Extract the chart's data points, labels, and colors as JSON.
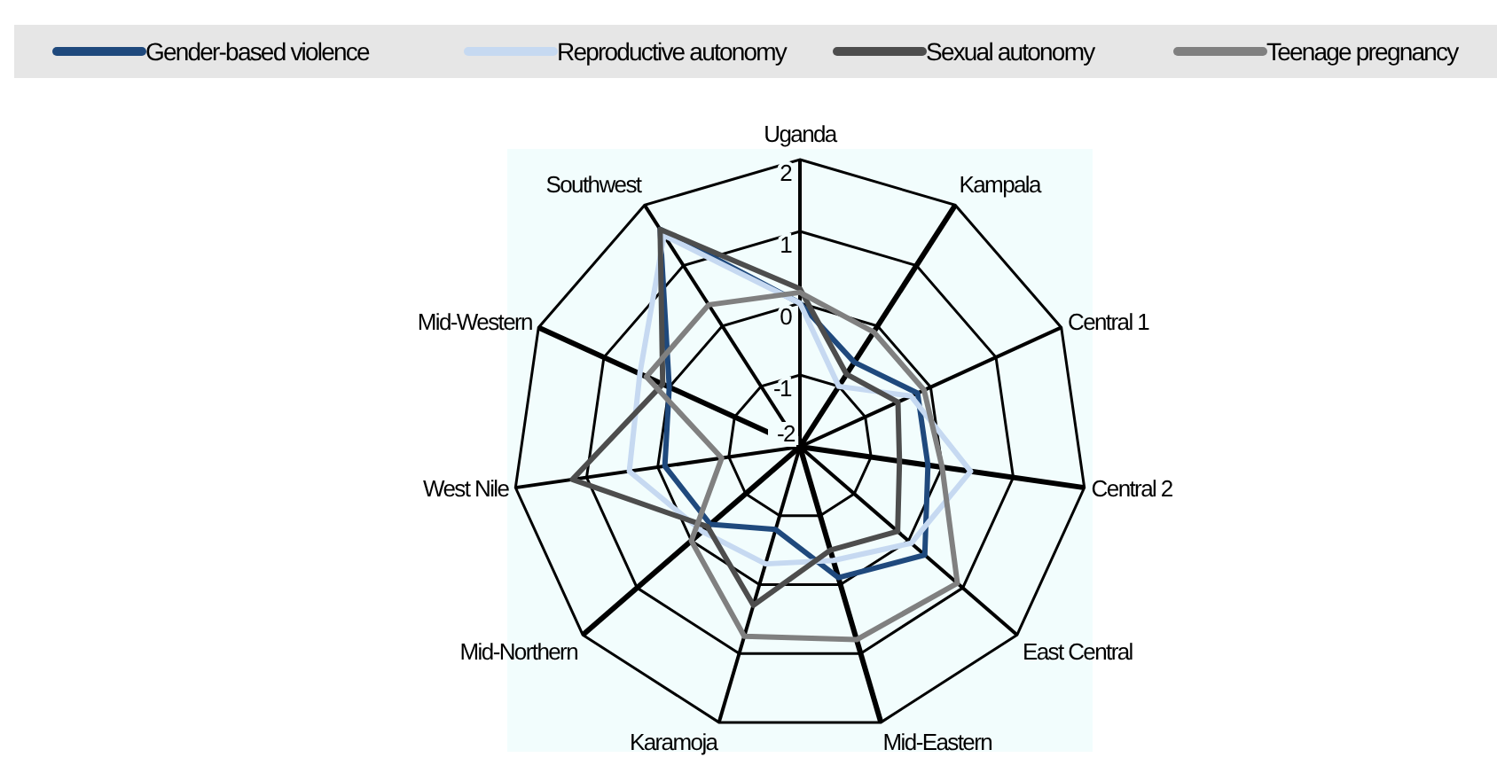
{
  "chart_data": {
    "type": "radar",
    "categories": [
      "Uganda",
      "Kampala",
      "Central 1",
      "Central 2",
      "East Central",
      "Mid-Eastern",
      "Karamoja",
      "Mid-Northern",
      "West Nile",
      "Mid-Western",
      "Southwest"
    ],
    "ylim": [
      -2,
      2
    ],
    "yticks": [
      -2,
      -1,
      0,
      1,
      2
    ],
    "legend": "top",
    "grid": true,
    "series": [
      {
        "name": "Gender-based violence",
        "color": "#1f497d",
        "values": [
          0.0,
          -0.6,
          -0.2,
          -0.2,
          0.3,
          -0.1,
          -0.8,
          -0.35,
          -0.1,
          0.0,
          1.6
        ]
      },
      {
        "name": "Reproductive autonomy",
        "color": "#c6d9f1",
        "values": [
          0.0,
          -1.0,
          -0.3,
          0.4,
          0.05,
          -0.35,
          -0.3,
          -0.2,
          0.4,
          0.45,
          1.5
        ]
      },
      {
        "name": "Sexual autonomy",
        "color": "#4d4d4d",
        "values": [
          0.2,
          -0.8,
          -0.5,
          -0.6,
          -0.2,
          -0.5,
          0.3,
          -0.3,
          1.2,
          0.1,
          1.6
        ]
      },
      {
        "name": "Teenage pregnancy",
        "color": "#808080",
        "values": [
          0.15,
          -0.1,
          -0.1,
          0.0,
          0.9,
          0.8,
          0.75,
          0.0,
          -0.9,
          0.35,
          0.35
        ]
      }
    ]
  }
}
